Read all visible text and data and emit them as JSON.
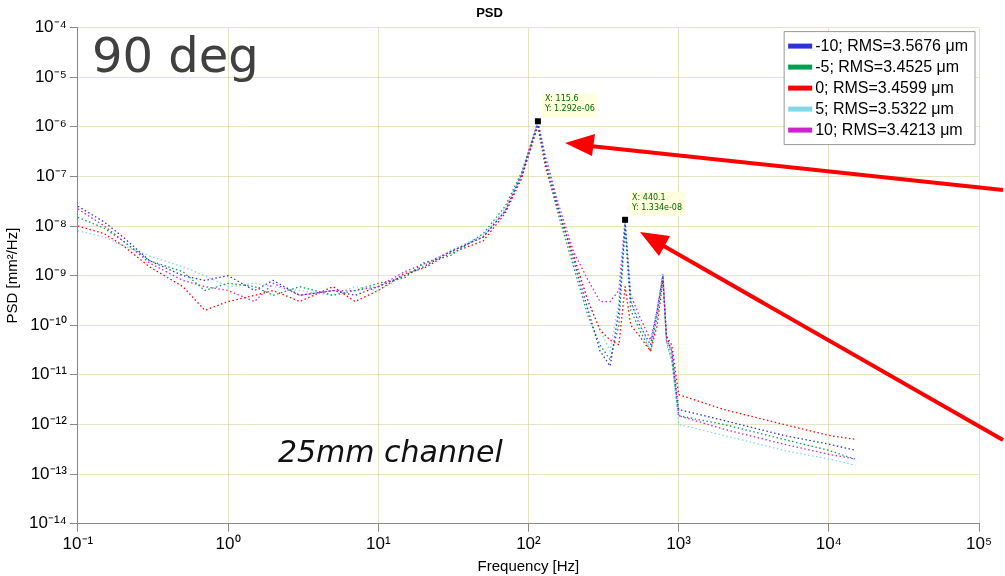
{
  "chart_data": {
    "type": "line",
    "title": "PSD",
    "xlabel": "Frequency [Hz]",
    "ylabel": "PSD [mm²/Hz]",
    "log": "xy",
    "grid": true,
    "legend": "top right",
    "marker": "none",
    "line_style": "dotted",
    "xlim": [
      0.1,
      100000
    ],
    "ylim": [
      1e-14,
      0.0001
    ],
    "xticks": [
      {
        "value": 0.1,
        "label": "10⁻¹"
      },
      {
        "value": 1,
        "label": "10⁰"
      },
      {
        "value": 10,
        "label": "10¹"
      },
      {
        "value": 100,
        "label": "10²"
      },
      {
        "value": 1000,
        "label": "10³"
      },
      {
        "value": 10000,
        "label": "10⁴"
      },
      {
        "value": 100000,
        "label": "10⁵"
      }
    ],
    "yticks": [
      {
        "value": 1e-14,
        "label": "10⁻¹⁴"
      },
      {
        "value": 1e-13,
        "label": "10⁻¹³"
      },
      {
        "value": 1e-12,
        "label": "10⁻¹²"
      },
      {
        "value": 1e-11,
        "label": "10⁻¹¹"
      },
      {
        "value": 1e-10,
        "label": "10⁻¹⁰"
      },
      {
        "value": 1e-09,
        "label": "10⁻⁹"
      },
      {
        "value": 1e-08,
        "label": "10⁻⁸"
      },
      {
        "value": 1e-07,
        "label": "10⁻⁷"
      },
      {
        "value": 1e-06,
        "label": "10⁻⁶"
      },
      {
        "value": 1e-05,
        "label": "10⁻⁵"
      },
      {
        "value": 0.0001,
        "label": "10⁻⁴"
      }
    ],
    "x": [
      0.1,
      0.15,
      0.2,
      0.3,
      0.5,
      0.7,
      1,
      1.5,
      2,
      3,
      5,
      7,
      10,
      15,
      20,
      30,
      50,
      70,
      90,
      105,
      115.6,
      130,
      160,
      200,
      250,
      300,
      350,
      400,
      440.1,
      480,
      550,
      650,
      720,
      785.5,
      830,
      900,
      1000,
      2000,
      5000,
      10000,
      15000
    ],
    "series": [
      {
        "name": "-10; RMS=3.5676 μm",
        "color": "#3030e0",
        "values": [
          2.5e-08,
          1.2e-08,
          6e-09,
          2e-09,
          1e-09,
          8e-10,
          1e-09,
          5e-10,
          8e-10,
          4e-10,
          5e-10,
          4e-10,
          6e-10,
          1e-09,
          1.5e-09,
          3e-09,
          6e-09,
          2e-08,
          1e-07,
          4e-07,
          1.2e-06,
          2e-07,
          2e-08,
          2e-09,
          2e-10,
          3e-11,
          1.5e-11,
          2e-10,
          1.1e-08,
          3e-10,
          1e-10,
          4e-11,
          2e-10,
          1e-09,
          6e-11,
          3e-11,
          2e-12,
          1.2e-12,
          6e-13,
          4e-13,
          3e-13
        ]
      },
      {
        "name": "-5; RMS=3.4525 μm",
        "color": "#00a050",
        "values": [
          1.5e-08,
          9e-09,
          5e-09,
          2e-09,
          1.2e-09,
          5e-10,
          7e-10,
          6e-10,
          4e-10,
          6e-10,
          4e-10,
          5e-10,
          7e-10,
          9e-10,
          1.8e-09,
          2.5e-09,
          7e-09,
          2.5e-08,
          1.2e-07,
          5e-07,
          1.1e-06,
          1.8e-07,
          1.5e-08,
          1.5e-09,
          1.5e-10,
          4e-11,
          2e-11,
          1e-10,
          9e-09,
          2e-10,
          8e-11,
          3e-11,
          1.5e-10,
          9e-10,
          5e-11,
          2e-11,
          1.5e-12,
          1e-12,
          5e-13,
          3e-13,
          2e-13
        ]
      },
      {
        "name": "0; RMS=3.4599 μm",
        "color": "#ff0000",
        "values": [
          1e-08,
          7e-09,
          4e-09,
          1.5e-09,
          6e-10,
          2e-10,
          3e-10,
          4e-10,
          5e-10,
          3e-10,
          6e-10,
          3e-10,
          5e-10,
          1.1e-09,
          1.4e-09,
          2.8e-09,
          5e-09,
          1.8e-08,
          9e-08,
          4.5e-07,
          1e-06,
          1.5e-07,
          1.8e-08,
          2.5e-09,
          3e-10,
          8e-11,
          5e-11,
          4e-11,
          6e-10,
          1e-10,
          6e-11,
          3e-11,
          1e-10,
          8e-10,
          6e-11,
          4e-11,
          4e-12,
          2e-12,
          1e-12,
          6e-13,
          5e-13
        ]
      },
      {
        "name": "5; RMS=3.5322 μm",
        "color": "#80d8e8",
        "values": [
          8e-09,
          6e-09,
          4e-09,
          2.5e-09,
          1.5e-09,
          1e-09,
          6e-10,
          7e-10,
          6e-10,
          5e-10,
          4e-10,
          6e-10,
          5e-10,
          1e-09,
          1.6e-09,
          3.2e-09,
          6.5e-09,
          2.2e-08,
          1.1e-07,
          4.8e-07,
          1.25e-06,
          2.2e-07,
          2.2e-08,
          2.2e-09,
          3e-10,
          8e-11,
          3e-11,
          3e-10,
          1.2e-08,
          3e-10,
          1.2e-10,
          3e-11,
          1.8e-10,
          1.1e-09,
          4e-11,
          2e-11,
          1e-12,
          6e-13,
          3e-13,
          2e-13,
          1.5e-13
        ]
      },
      {
        "name": "10; RMS=3.4213 μm",
        "color": "#cc22cc",
        "values": [
          2.2e-08,
          1e-08,
          5e-09,
          1.8e-09,
          8e-10,
          6e-10,
          5e-10,
          3e-10,
          7e-10,
          4e-10,
          5e-10,
          5e-10,
          6e-10,
          1.2e-09,
          1.7e-09,
          3e-09,
          6e-09,
          2e-08,
          1.1e-07,
          5e-07,
          1.292e-06,
          2.5e-07,
          2.5e-08,
          3e-09,
          8e-10,
          3e-10,
          3e-10,
          5e-10,
          1.334e-08,
          4e-10,
          1.5e-10,
          5e-11,
          2e-10,
          1.1e-09,
          5e-11,
          3e-11,
          1.5e-12,
          8e-13,
          4e-13,
          2.5e-13,
          2e-13
        ]
      }
    ],
    "annotations": [
      "90 deg",
      "25mm channel",
      {
        "text": "X: 115.6\nY: 1.292e-06",
        "x": 115.6,
        "y": 1.292e-06
      },
      {
        "text": "X: 440.1\nY: 1.334e-08",
        "x": 440.1,
        "y": 1.334e-08
      }
    ]
  }
}
